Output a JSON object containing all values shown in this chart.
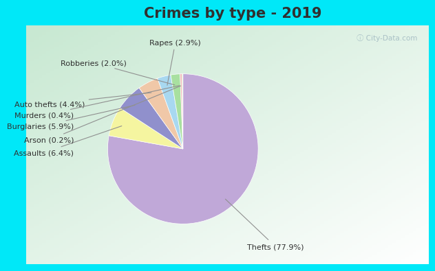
{
  "title": "Crimes by type - 2019",
  "labels": [
    "Thefts",
    "Assaults",
    "Burglaries",
    "Auto thefts",
    "Rapes",
    "Robberies",
    "Murders",
    "Arson"
  ],
  "values": [
    77.9,
    6.4,
    5.9,
    4.4,
    2.9,
    2.0,
    0.4,
    0.2
  ],
  "colors": [
    "#c0a8d8",
    "#f5f5a0",
    "#9090cc",
    "#f0c8a8",
    "#a8d8f0",
    "#a8e0a0",
    "#f0b8b8",
    "#d0e0b0"
  ],
  "background_cyan": "#00e8f8",
  "background_inner_green": "#c8e8d0",
  "background_inner_white": "#e8f4f0",
  "title_color": "#303030",
  "title_fontsize": 15,
  "label_fontsize": 8,
  "label_color": "#303030",
  "line_color": "#909090",
  "watermark_color": "#a0b8c0",
  "label_texts": {
    "Thefts": "Thefts (77.9%)",
    "Assaults": "Assaults (6.4%)",
    "Burglaries": "Burglaries (5.9%)",
    "Auto thefts": "Auto thefts (4.4%)",
    "Rapes": "Rapes (2.9%)",
    "Robberies": "Robberies (2.0%)",
    "Murders": "Murders (0.4%)",
    "Arson": "Arson (0.2%)"
  }
}
